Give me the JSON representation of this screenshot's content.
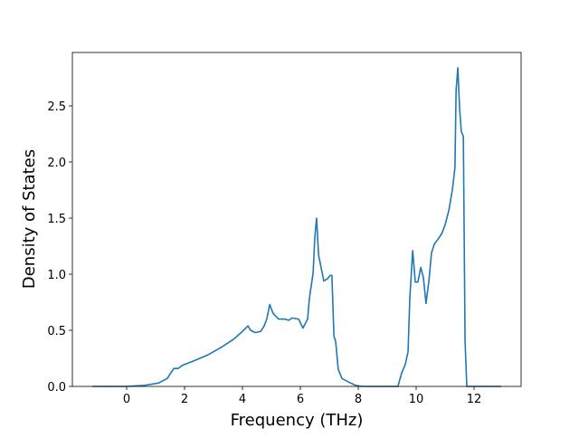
{
  "chart_data": {
    "type": "line",
    "x_label": "Frequency (THz)",
    "y_label": "Density of States",
    "xlim": [
      -1.875,
      13.625
    ],
    "ylim": [
      0,
      2.976
    ],
    "xticks": [
      0,
      2,
      4,
      6,
      8,
      10,
      12
    ],
    "yticks": [
      {
        "value": 0,
        "label": "0.0"
      },
      {
        "value": 0.5,
        "label": "0.5"
      },
      {
        "value": 1,
        "label": "1.0"
      },
      {
        "value": 1.5,
        "label": "1.5"
      },
      {
        "value": 2,
        "label": "2.0"
      },
      {
        "value": 2.5,
        "label": "2.5"
      }
    ],
    "grid": false,
    "x": [
      -1.19,
      0,
      0.63,
      1.1,
      1.4,
      1.5,
      1.63,
      1.78,
      1.94,
      2.34,
      2.8,
      3.28,
      3.69,
      4.0,
      4.19,
      4.28,
      4.44,
      4.63,
      4.75,
      4.84,
      4.94,
      5.06,
      5.25,
      5.47,
      5.6,
      5.72,
      5.94,
      6.09,
      6.25,
      6.31,
      6.44,
      6.5,
      6.56,
      6.63,
      6.81,
      6.94,
      7.03,
      7.09,
      7.16,
      7.22,
      7.31,
      7.44,
      7.66,
      7.9,
      8.12,
      9.37,
      9.5,
      9.63,
      9.72,
      9.78,
      9.88,
      9.97,
      10.06,
      10.16,
      10.25,
      10.34,
      10.44,
      10.53,
      10.63,
      10.75,
      10.88,
      11.0,
      11.13,
      11.25,
      11.34,
      11.38,
      11.44,
      11.5,
      11.56,
      11.63,
      11.69,
      11.75,
      12.94
    ],
    "series": [
      {
        "color": "#1f77b4",
        "values": [
          0,
          0,
          0.01,
          0.03,
          0.07,
          0.11,
          0.16,
          0.16,
          0.19,
          0.23,
          0.28,
          0.35,
          0.42,
          0.49,
          0.54,
          0.5,
          0.48,
          0.49,
          0.54,
          0.6,
          0.73,
          0.65,
          0.6,
          0.6,
          0.59,
          0.61,
          0.6,
          0.52,
          0.6,
          0.78,
          1.01,
          1.33,
          1.5,
          1.17,
          0.94,
          0.96,
          0.99,
          0.99,
          0.45,
          0.4,
          0.15,
          0.07,
          0.04,
          0.01,
          0,
          0,
          0.12,
          0.2,
          0.31,
          0.78,
          1.21,
          0.93,
          0.93,
          1.06,
          0.97,
          0.74,
          0.94,
          1.19,
          1.27,
          1.31,
          1.36,
          1.44,
          1.57,
          1.75,
          1.95,
          2.64,
          2.84,
          2.48,
          2.27,
          2.23,
          0.4,
          0,
          0
        ]
      }
    ]
  }
}
